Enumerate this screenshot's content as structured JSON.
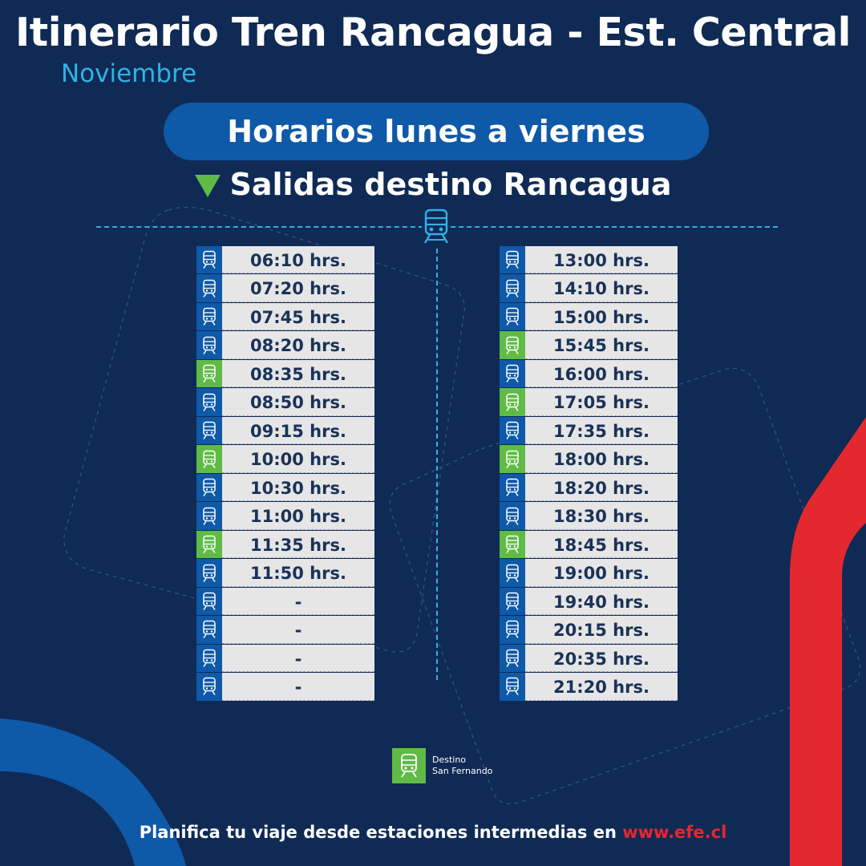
{
  "header": {
    "title": "Itinerario Tren Rancagua - Est. Central",
    "month": "Noviembre"
  },
  "schedule_label": "Horarios lunes a viernes",
  "section_title": "Salidas destino Rancagua",
  "colors": {
    "background": "#0f2a55",
    "blue": "#0e59a8",
    "green": "#5fbb46",
    "cyan": "#2fb3e3",
    "red": "#e3282f",
    "row": "#e6e6e6"
  },
  "left_column": [
    {
      "time": "06:10 hrs.",
      "san_fernando": false
    },
    {
      "time": "07:20 hrs.",
      "san_fernando": false
    },
    {
      "time": "07:45 hrs.",
      "san_fernando": false
    },
    {
      "time": "08:20 hrs.",
      "san_fernando": false
    },
    {
      "time": "08:35 hrs.",
      "san_fernando": true
    },
    {
      "time": "08:50 hrs.",
      "san_fernando": false
    },
    {
      "time": "09:15 hrs.",
      "san_fernando": false
    },
    {
      "time": "10:00 hrs.",
      "san_fernando": true
    },
    {
      "time": "10:30 hrs.",
      "san_fernando": false
    },
    {
      "time": "11:00 hrs.",
      "san_fernando": false
    },
    {
      "time": "11:35 hrs.",
      "san_fernando": true
    },
    {
      "time": "11:50 hrs.",
      "san_fernando": false
    },
    {
      "time": "-",
      "san_fernando": false
    },
    {
      "time": "-",
      "san_fernando": false
    },
    {
      "time": "-",
      "san_fernando": false
    },
    {
      "time": "-",
      "san_fernando": false
    }
  ],
  "right_column": [
    {
      "time": "13:00 hrs.",
      "san_fernando": false
    },
    {
      "time": "14:10  hrs.",
      "san_fernando": false
    },
    {
      "time": "15:00 hrs.",
      "san_fernando": false
    },
    {
      "time": "15:45 hrs.",
      "san_fernando": true
    },
    {
      "time": "16:00 hrs.",
      "san_fernando": false
    },
    {
      "time": "17:05 hrs.",
      "san_fernando": true
    },
    {
      "time": "17:35 hrs.",
      "san_fernando": false
    },
    {
      "time": "18:00 hrs.",
      "san_fernando": true
    },
    {
      "time": "18:20 hrs.",
      "san_fernando": false
    },
    {
      "time": "18:30 hrs.",
      "san_fernando": false
    },
    {
      "time": "18:45 hrs.",
      "san_fernando": true
    },
    {
      "time": "19:00 hrs.",
      "san_fernando": false
    },
    {
      "time": "19:40 hrs.",
      "san_fernando": false
    },
    {
      "time": "20:15 hrs.",
      "san_fernando": false
    },
    {
      "time": "20:35 hrs.",
      "san_fernando": false
    },
    {
      "time": "21:20 hrs.",
      "san_fernando": false
    }
  ],
  "legend": {
    "line1": "Destino",
    "line2": "San Fernando",
    "icon": "train-icon"
  },
  "footer": {
    "text": "Planifica tu viaje desde estaciones intermedias en",
    "link": "www.efe.cl"
  }
}
